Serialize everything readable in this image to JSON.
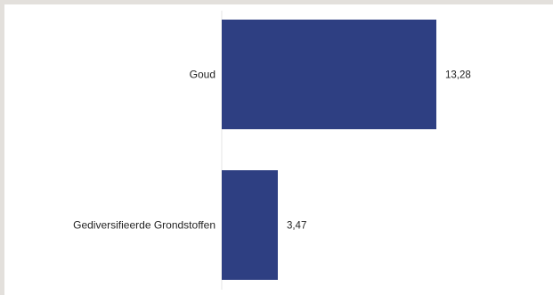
{
  "chart_data": {
    "type": "bar",
    "orientation": "horizontal",
    "categories": [
      "Goud",
      "Gediversifieerde Grondstoffen"
    ],
    "values": [
      13.28,
      3.47
    ],
    "value_labels": [
      "13,28",
      "3,47"
    ],
    "title": "",
    "xlabel": "",
    "ylabel": "",
    "xlim": [
      0,
      13.28
    ],
    "grid": false,
    "legend": "none",
    "colors": {
      "bar": "#2e3f82",
      "axis": "#e6e6e6",
      "text": "#222222"
    }
  }
}
